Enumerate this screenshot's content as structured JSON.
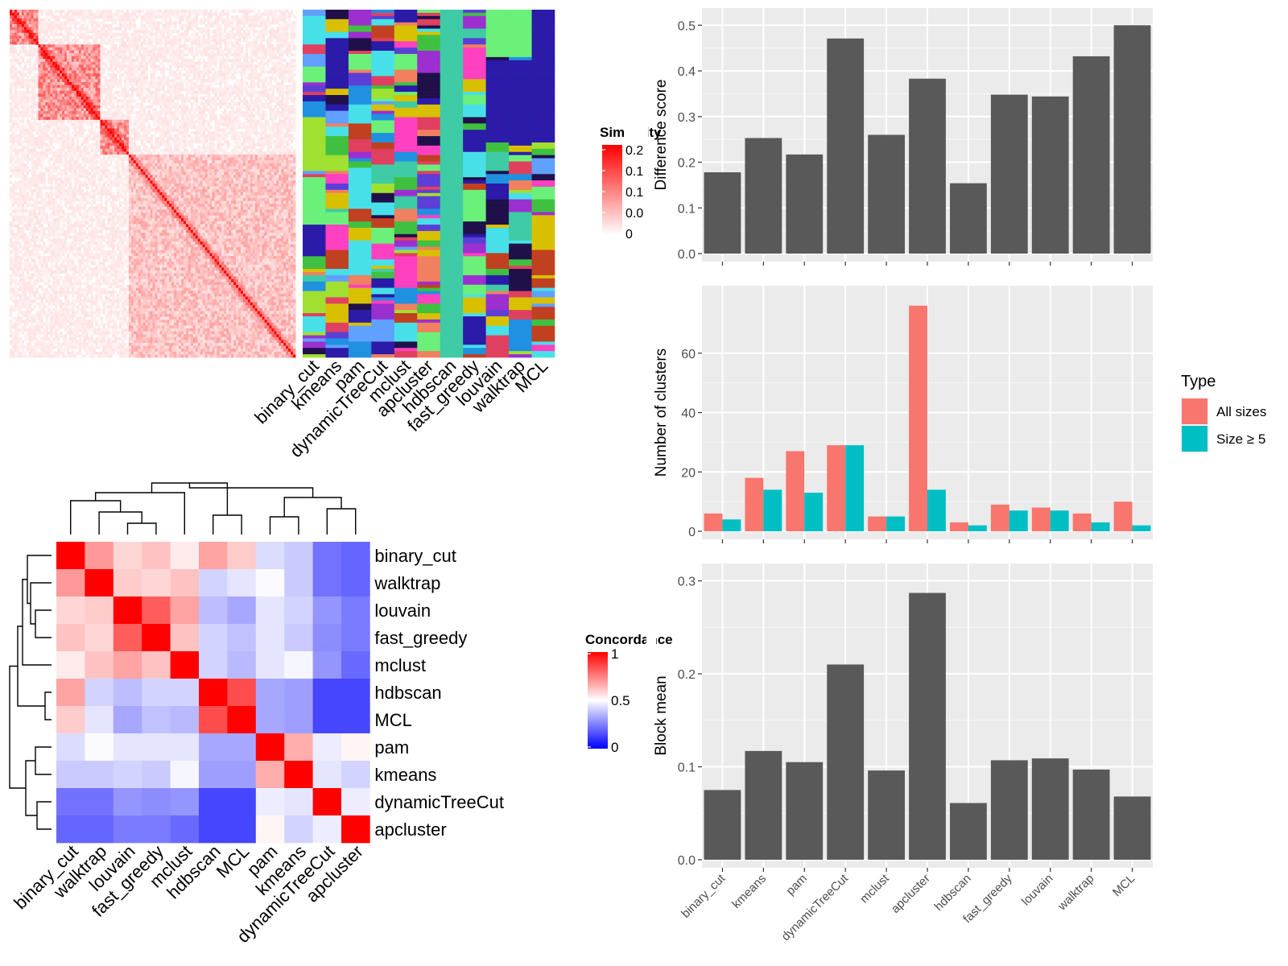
{
  "similarity_heatmap": {
    "legend_title": "Similarity",
    "legend_ticks": [
      "0.2",
      "0.1",
      "0.1",
      "0.0",
      "0"
    ],
    "method_labels": [
      "binary_cut",
      "kmeans",
      "pam",
      "dynamicTreeCut",
      "mclust",
      "apcluster",
      "hdbscan",
      "fast_greedy",
      "louvain",
      "walktrap",
      "MCL"
    ],
    "colors": {
      "high": "#ff0000",
      "low": "#ffffff"
    }
  },
  "concordance_heatmap": {
    "legend_title": "Concordance",
    "legend_ticks": [
      "1",
      "0.5",
      "0"
    ],
    "colors": {
      "high": "#ff0000",
      "mid": "#ffffff",
      "low": "#0000ff"
    }
  },
  "chart_data": [
    {
      "type": "heatmap",
      "title": "",
      "rows": [
        "binary_cut",
        "walktrap",
        "louvain",
        "fast_greedy",
        "mclust",
        "hdbscan",
        "MCL",
        "pam",
        "kmeans",
        "dynamicTreeCut",
        "apcluster"
      ],
      "columns": [
        "binary_cut",
        "walktrap",
        "louvain",
        "fast_greedy",
        "mclust",
        "hdbscan",
        "MCL",
        "pam",
        "kmeans",
        "dynamicTreeCut",
        "apcluster"
      ],
      "values": [
        [
          1.0,
          0.7,
          0.58,
          0.62,
          0.54,
          0.68,
          0.6,
          0.42,
          0.38,
          0.18,
          0.15
        ],
        [
          0.7,
          1.0,
          0.6,
          0.58,
          0.62,
          0.4,
          0.44,
          0.49,
          0.38,
          0.18,
          0.15
        ],
        [
          0.58,
          0.6,
          1.0,
          0.82,
          0.68,
          0.35,
          0.3,
          0.44,
          0.4,
          0.26,
          0.2
        ],
        [
          0.62,
          0.58,
          0.82,
          1.0,
          0.62,
          0.4,
          0.36,
          0.44,
          0.38,
          0.24,
          0.2
        ],
        [
          0.54,
          0.62,
          0.68,
          0.62,
          1.0,
          0.4,
          0.34,
          0.44,
          0.48,
          0.26,
          0.16
        ],
        [
          0.68,
          0.4,
          0.35,
          0.4,
          0.4,
          1.0,
          0.85,
          0.3,
          0.28,
          0.08,
          0.08
        ],
        [
          0.6,
          0.44,
          0.3,
          0.36,
          0.34,
          0.85,
          1.0,
          0.3,
          0.28,
          0.08,
          0.08
        ],
        [
          0.42,
          0.49,
          0.44,
          0.44,
          0.44,
          0.3,
          0.3,
          1.0,
          0.66,
          0.46,
          0.52
        ],
        [
          0.38,
          0.38,
          0.4,
          0.38,
          0.48,
          0.28,
          0.28,
          0.66,
          1.0,
          0.44,
          0.4
        ],
        [
          0.18,
          0.18,
          0.26,
          0.24,
          0.26,
          0.08,
          0.08,
          0.46,
          0.44,
          1.0,
          0.46
        ],
        [
          0.15,
          0.15,
          0.2,
          0.2,
          0.16,
          0.08,
          0.08,
          0.52,
          0.4,
          0.46,
          1.0
        ]
      ],
      "legend": {
        "title": "Concordance",
        "range": [
          0,
          1
        ]
      }
    },
    {
      "type": "bar",
      "categories": [
        "binary_cut",
        "kmeans",
        "pam",
        "dynamicTreeCut",
        "mclust",
        "apcluster",
        "hdbscan",
        "fast_greedy",
        "louvain",
        "walktrap",
        "MCL"
      ],
      "values": [
        0.178,
        0.253,
        0.217,
        0.471,
        0.26,
        0.383,
        0.154,
        0.348,
        0.344,
        0.432,
        0.5
      ],
      "xlabel": "",
      "ylabel": "Difference score",
      "ylim": [
        0,
        0.52
      ],
      "yticks": [
        "0.0",
        "0.1",
        "0.2",
        "0.3",
        "0.4",
        "0.5"
      ],
      "grid": true
    },
    {
      "type": "bar",
      "categories": [
        "binary_cut",
        "kmeans",
        "pam",
        "dynamicTreeCut",
        "mclust",
        "apcluster",
        "hdbscan",
        "fast_greedy",
        "louvain",
        "walktrap",
        "MCL"
      ],
      "series": [
        {
          "name": "All sizes",
          "values": [
            6,
            18,
            27,
            29,
            5,
            76,
            3,
            9,
            8,
            6,
            10
          ],
          "color": "#F8766D"
        },
        {
          "name": "Size ≥ 5",
          "values": [
            4,
            14,
            13,
            29,
            5,
            14,
            2,
            7,
            7,
            3,
            2
          ],
          "color": "#00BFC4"
        }
      ],
      "xlabel": "",
      "ylabel": "Number of clusters",
      "ylim": [
        0,
        80
      ],
      "yticks": [
        "0",
        "20",
        "40",
        "60"
      ],
      "legend": {
        "title": "Type",
        "position": "right"
      },
      "grid": true
    },
    {
      "type": "bar",
      "categories": [
        "binary_cut",
        "kmeans",
        "pam",
        "dynamicTreeCut",
        "mclust",
        "apcluster",
        "hdbscan",
        "fast_greedy",
        "louvain",
        "walktrap",
        "MCL"
      ],
      "values": [
        0.075,
        0.117,
        0.105,
        0.21,
        0.096,
        0.287,
        0.061,
        0.107,
        0.109,
        0.097,
        0.068
      ],
      "xlabel": "",
      "ylabel": "Block mean",
      "ylim": [
        0,
        0.31
      ],
      "yticks": [
        "0.0",
        "0.1",
        "0.2",
        "0.3"
      ],
      "grid": true
    }
  ]
}
